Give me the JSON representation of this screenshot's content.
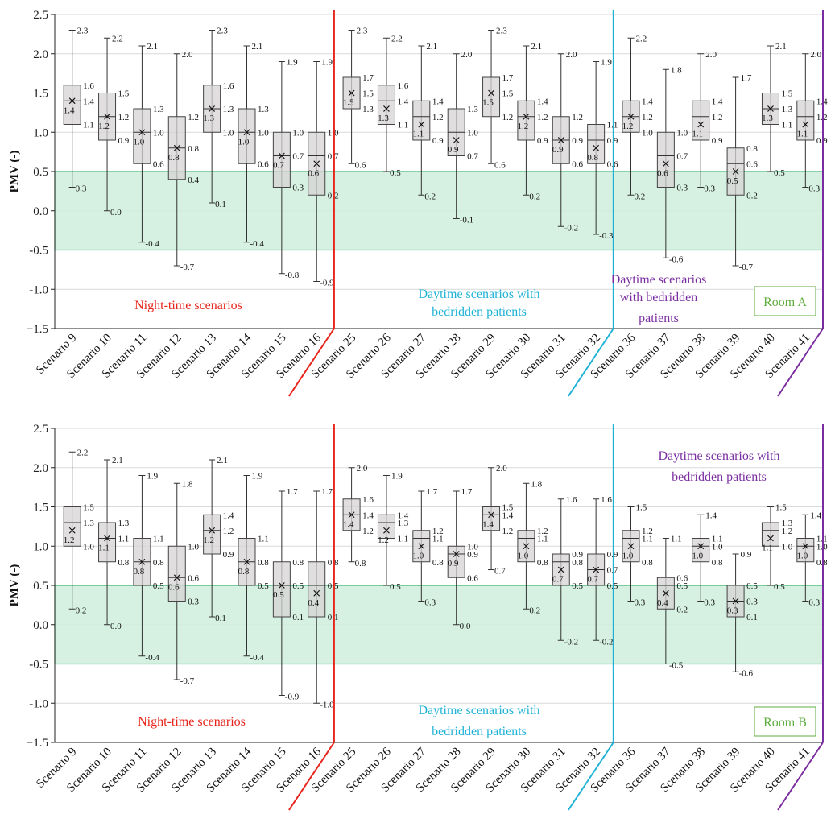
{
  "chart_data": [
    {
      "type": "box",
      "ylabel": "PMV (-)",
      "ylim": [
        -1.5,
        2.5
      ],
      "yticks": [
        2.5,
        2.0,
        1.5,
        1.0,
        0.5,
        0.0,
        -0.5,
        -1.0,
        -1.5
      ],
      "ytick_labels": [
        "2.5",
        "2.0",
        "1.5",
        "1.0",
        "0.5",
        "0.0",
        "-0.5",
        "-1.0",
        "−1.5"
      ],
      "grid": true,
      "comfort_band": [
        -0.5,
        0.5
      ],
      "categories": [
        "Scenario 9",
        "Scenario 10",
        "Scenario 11",
        "Scenario 12",
        "Scenario 13",
        "Scenario 14",
        "Scenario 15",
        "Scenario 16",
        "Scenario 25",
        "Scenario 26",
        "Scenario 27",
        "Scenario 28",
        "Scenario 29",
        "Scenario 30",
        "Scenario 31",
        "Scenario 32",
        "Scenario 36",
        "Scenario 37",
        "Scenario 38",
        "Scenario 39",
        "Scenario 40",
        "Scenario 41"
      ],
      "boxes": [
        {
          "max": 2.3,
          "q3": 1.6,
          "median": 1.4,
          "mean": 1.4,
          "q1": 1.1,
          "min": 0.3
        },
        {
          "max": 2.2,
          "q3": 1.5,
          "median": 1.2,
          "mean": 1.2,
          "q1": 0.9,
          "min": 0.0
        },
        {
          "max": 2.1,
          "q3": 1.3,
          "median": 1.0,
          "mean": 1.0,
          "q1": 0.6,
          "min": -0.4
        },
        {
          "max": 2.0,
          "q3": 1.2,
          "median": 0.8,
          "mean": 0.8,
          "q1": 0.4,
          "min": -0.7
        },
        {
          "max": 2.3,
          "q3": 1.6,
          "median": 1.3,
          "mean": 1.3,
          "q1": 1.0,
          "min": 0.1
        },
        {
          "max": 2.1,
          "q3": 1.3,
          "median": 1.0,
          "mean": 1.0,
          "q1": 0.6,
          "min": -0.4
        },
        {
          "max": 1.9,
          "q3": 1.0,
          "median": 0.7,
          "mean": 0.7,
          "q1": 0.3,
          "min": -0.8
        },
        {
          "max": 1.9,
          "q3": 1.0,
          "median": 0.7,
          "mean": 0.6,
          "q1": 0.2,
          "min": -0.9
        },
        {
          "max": 2.3,
          "q3": 1.7,
          "median": 1.5,
          "mean": 1.5,
          "q1": 1.3,
          "min": 0.6
        },
        {
          "max": 2.2,
          "q3": 1.6,
          "median": 1.4,
          "mean": 1.3,
          "q1": 1.1,
          "min": 0.5
        },
        {
          "max": 2.1,
          "q3": 1.4,
          "median": 1.2,
          "mean": 1.1,
          "q1": 0.9,
          "min": 0.2
        },
        {
          "max": 2.0,
          "q3": 1.3,
          "median": 1.0,
          "mean": 0.9,
          "q1": 0.7,
          "min": -0.1
        },
        {
          "max": 2.3,
          "q3": 1.7,
          "median": 1.5,
          "mean": 1.5,
          "q1": 1.2,
          "min": 0.6
        },
        {
          "max": 2.1,
          "q3": 1.4,
          "median": 1.2,
          "mean": 1.2,
          "q1": 0.9,
          "min": 0.2
        },
        {
          "max": 2.0,
          "q3": 1.2,
          "median": 0.9,
          "mean": 0.9,
          "q1": 0.6,
          "min": -0.2
        },
        {
          "max": 1.9,
          "q3": 1.1,
          "median": 0.9,
          "mean": 0.8,
          "q1": 0.6,
          "min": -0.3
        },
        {
          "max": 2.2,
          "q3": 1.4,
          "median": 1.2,
          "mean": 1.2,
          "q1": 1.0,
          "min": 0.2
        },
        {
          "max": 1.8,
          "q3": 1.0,
          "median": 0.7,
          "mean": 0.6,
          "q1": 0.3,
          "min": -0.6
        },
        {
          "max": 2.0,
          "q3": 1.4,
          "median": 1.2,
          "mean": 1.1,
          "q1": 0.9,
          "min": 0.3
        },
        {
          "max": 1.7,
          "q3": 0.8,
          "median": 0.6,
          "mean": 0.5,
          "q1": 0.2,
          "min": -0.7
        },
        {
          "max": 2.1,
          "q3": 1.5,
          "median": 1.3,
          "mean": 1.3,
          "q1": 1.1,
          "min": 0.5
        },
        {
          "max": 2.0,
          "q3": 1.4,
          "median": 1.2,
          "mean": 1.1,
          "q1": 0.9,
          "min": 0.3
        }
      ],
      "groups": [
        {
          "label_lines": [
            "Night-time scenarios"
          ],
          "color": "#e8251c"
        },
        {
          "label_lines": [
            "Daytime scenarios with",
            "bedridden patients"
          ],
          "color": "#1fb2d6"
        },
        {
          "label_lines": [
            "Daytime scenarios",
            "with bedridden",
            "patients"
          ],
          "color": "#7a2da0"
        }
      ],
      "room_label": "Room A"
    },
    {
      "type": "box",
      "ylabel": "PMV (-)",
      "ylim": [
        -1.5,
        2.5
      ],
      "yticks": [
        2.5,
        2.0,
        1.5,
        1.0,
        0.5,
        0.0,
        -0.5,
        -1.0,
        -1.5
      ],
      "ytick_labels": [
        "2.5",
        "2.0",
        "1.5",
        "1.0",
        "0.5",
        "0.0",
        "-0.5",
        "-1.0",
        "−1.5"
      ],
      "grid": true,
      "comfort_band": [
        -0.5,
        0.5
      ],
      "categories": [
        "Scenario 9",
        "Scenario 10",
        "Scenario 11",
        "Scenario 12",
        "Scenario 13",
        "Scenario 14",
        "Scenario 15",
        "Scenario 16",
        "Scenario 25",
        "Scenario 26",
        "Scenario 27",
        "Scenario 28",
        "Scenario 29",
        "Scenario 30",
        "Scenario 31",
        "Scenario 32",
        "Scenario 36",
        "Scenario 37",
        "Scenario 38",
        "Scenario 39",
        "Scenario 40",
        "Scenario 41"
      ],
      "boxes": [
        {
          "max": 2.2,
          "q3": 1.5,
          "median": 1.3,
          "mean": 1.2,
          "q1": 1.0,
          "min": 0.2
        },
        {
          "max": 2.1,
          "q3": 1.3,
          "median": 1.1,
          "mean": 1.1,
          "q1": 0.8,
          "min": 0.0
        },
        {
          "max": 1.9,
          "q3": 1.1,
          "median": 0.8,
          "mean": 0.8,
          "q1": 0.5,
          "min": -0.4
        },
        {
          "max": 1.8,
          "q3": 1.0,
          "median": 0.6,
          "mean": 0.6,
          "q1": 0.3,
          "min": -0.7
        },
        {
          "max": 2.1,
          "q3": 1.4,
          "median": 1.2,
          "mean": 1.2,
          "q1": 0.9,
          "min": 0.1
        },
        {
          "max": 1.9,
          "q3": 1.1,
          "median": 0.8,
          "mean": 0.8,
          "q1": 0.5,
          "min": -0.4
        },
        {
          "max": 1.7,
          "q3": 0.8,
          "median": 0.5,
          "mean": 0.5,
          "q1": 0.1,
          "min": -0.9
        },
        {
          "max": 1.7,
          "q3": 0.8,
          "median": 0.5,
          "mean": 0.4,
          "q1": 0.1,
          "min": -1.0
        },
        {
          "max": 2.0,
          "q3": 1.6,
          "median": 1.4,
          "mean": 1.4,
          "q1": 1.2,
          "min": 0.8
        },
        {
          "max": 1.9,
          "q3": 1.4,
          "median": 1.3,
          "mean": 1.2,
          "q1": 1.1,
          "min": 0.5
        },
        {
          "max": 1.7,
          "q3": 1.2,
          "median": 1.1,
          "mean": 1.0,
          "q1": 0.8,
          "min": 0.3
        },
        {
          "max": 1.7,
          "q3": 1.0,
          "median": 0.9,
          "mean": 0.9,
          "q1": 0.6,
          "min": 0.0
        },
        {
          "max": 2.0,
          "q3": 1.5,
          "median": 1.4,
          "mean": 1.4,
          "q1": 1.2,
          "min": 0.7
        },
        {
          "max": 1.8,
          "q3": 1.2,
          "median": 1.1,
          "mean": 1.0,
          "q1": 0.8,
          "min": 0.2
        },
        {
          "max": 1.6,
          "q3": 0.9,
          "median": 0.8,
          "mean": 0.7,
          "q1": 0.5,
          "min": -0.2
        },
        {
          "max": 1.6,
          "q3": 0.9,
          "median": 0.7,
          "mean": 0.7,
          "q1": 0.5,
          "min": -0.2
        },
        {
          "max": 1.5,
          "q3": 1.2,
          "median": 1.1,
          "mean": 1.0,
          "q1": 0.8,
          "min": 0.3
        },
        {
          "max": 1.1,
          "q3": 0.6,
          "median": 0.5,
          "mean": 0.4,
          "q1": 0.2,
          "min": -0.5
        },
        {
          "max": 1.4,
          "q3": 1.1,
          "median": 1.0,
          "mean": 1.0,
          "q1": 0.8,
          "min": 0.3
        },
        {
          "max": 0.9,
          "q3": 0.5,
          "median": 0.3,
          "mean": 0.3,
          "q1": 0.1,
          "min": -0.6
        },
        {
          "max": 1.5,
          "q3": 1.3,
          "median": 1.2,
          "mean": 1.1,
          "q1": 1.0,
          "min": 0.5
        },
        {
          "max": 1.4,
          "q3": 1.1,
          "median": 1.0,
          "mean": 1.0,
          "q1": 0.8,
          "min": 0.3
        }
      ],
      "groups": [
        {
          "label_lines": [
            "Night-time scenarios"
          ],
          "color": "#e8251c"
        },
        {
          "label_lines": [
            "Daytime scenarios with",
            "bedridden patients"
          ],
          "color": "#1fb2d6"
        },
        {
          "label_lines": [
            "Daytime scenarios with",
            "bedridden patients"
          ],
          "color": "#7a2da0"
        }
      ],
      "room_label": "Room B"
    }
  ],
  "colors": {
    "comfort_fill": "#cfeedd",
    "comfort_border": "#3bb36b",
    "box_fill": "#d6d3d4",
    "room_label": "#5fae3f",
    "grid": "#d9d9d9"
  }
}
